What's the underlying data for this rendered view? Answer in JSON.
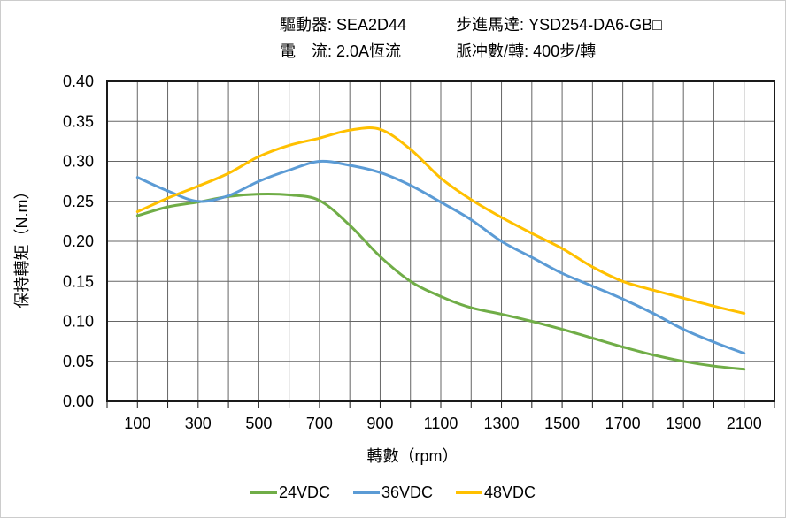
{
  "header": {
    "driver": "驅動器: SEA2D44",
    "current": "電　流: 2.0A恆流",
    "motor": "步進馬達: YSD254-DA6-GB□",
    "pulse": "脈冲數/轉: 400步/轉"
  },
  "chart_data": {
    "type": "line",
    "title": "",
    "xlabel": "轉數（rpm）",
    "ylabel": "保持轉矩（N.m）",
    "xlim": [
      0,
      2200
    ],
    "ylim": [
      0,
      0.4
    ],
    "grid": true,
    "x_grid_step": 100,
    "y_grid_step": 0.05,
    "legend_position": "bottom",
    "x_tick_labels": [
      "100",
      "300",
      "500",
      "700",
      "900",
      "1100",
      "1300",
      "1500",
      "1700",
      "1900",
      "2100"
    ],
    "x_tick_values": [
      100,
      300,
      500,
      700,
      900,
      1100,
      1300,
      1500,
      1700,
      1900,
      2100
    ],
    "y_tick_labels": [
      "0.00",
      "0.05",
      "0.10",
      "0.15",
      "0.20",
      "0.25",
      "0.30",
      "0.35",
      "0.40"
    ],
    "y_tick_values": [
      0.0,
      0.05,
      0.1,
      0.15,
      0.2,
      0.25,
      0.3,
      0.35,
      0.4
    ],
    "x": [
      100,
      200,
      300,
      400,
      500,
      600,
      700,
      800,
      900,
      1000,
      1100,
      1200,
      1300,
      1400,
      1500,
      1600,
      1700,
      1800,
      1900,
      2000,
      2100
    ],
    "series": [
      {
        "name": "24VDC",
        "color": "#70AD47",
        "values": [
          0.232,
          0.243,
          0.249,
          0.256,
          0.259,
          0.258,
          0.251,
          0.22,
          0.181,
          0.15,
          0.131,
          0.117,
          0.109,
          0.1,
          0.09,
          0.079,
          0.068,
          0.058,
          0.05,
          0.044,
          0.04
        ]
      },
      {
        "name": "36VDC",
        "color": "#5B9BD5",
        "values": [
          0.28,
          0.263,
          0.25,
          0.257,
          0.275,
          0.289,
          0.3,
          0.295,
          0.286,
          0.27,
          0.249,
          0.227,
          0.2,
          0.18,
          0.16,
          0.144,
          0.128,
          0.11,
          0.09,
          0.074,
          0.06
        ]
      },
      {
        "name": "48VDC",
        "color": "#FFC000",
        "values": [
          0.237,
          0.254,
          0.269,
          0.285,
          0.306,
          0.32,
          0.329,
          0.339,
          0.34,
          0.315,
          0.279,
          0.252,
          0.23,
          0.21,
          0.191,
          0.168,
          0.15,
          0.139,
          0.129,
          0.119,
          0.11
        ]
      }
    ]
  }
}
